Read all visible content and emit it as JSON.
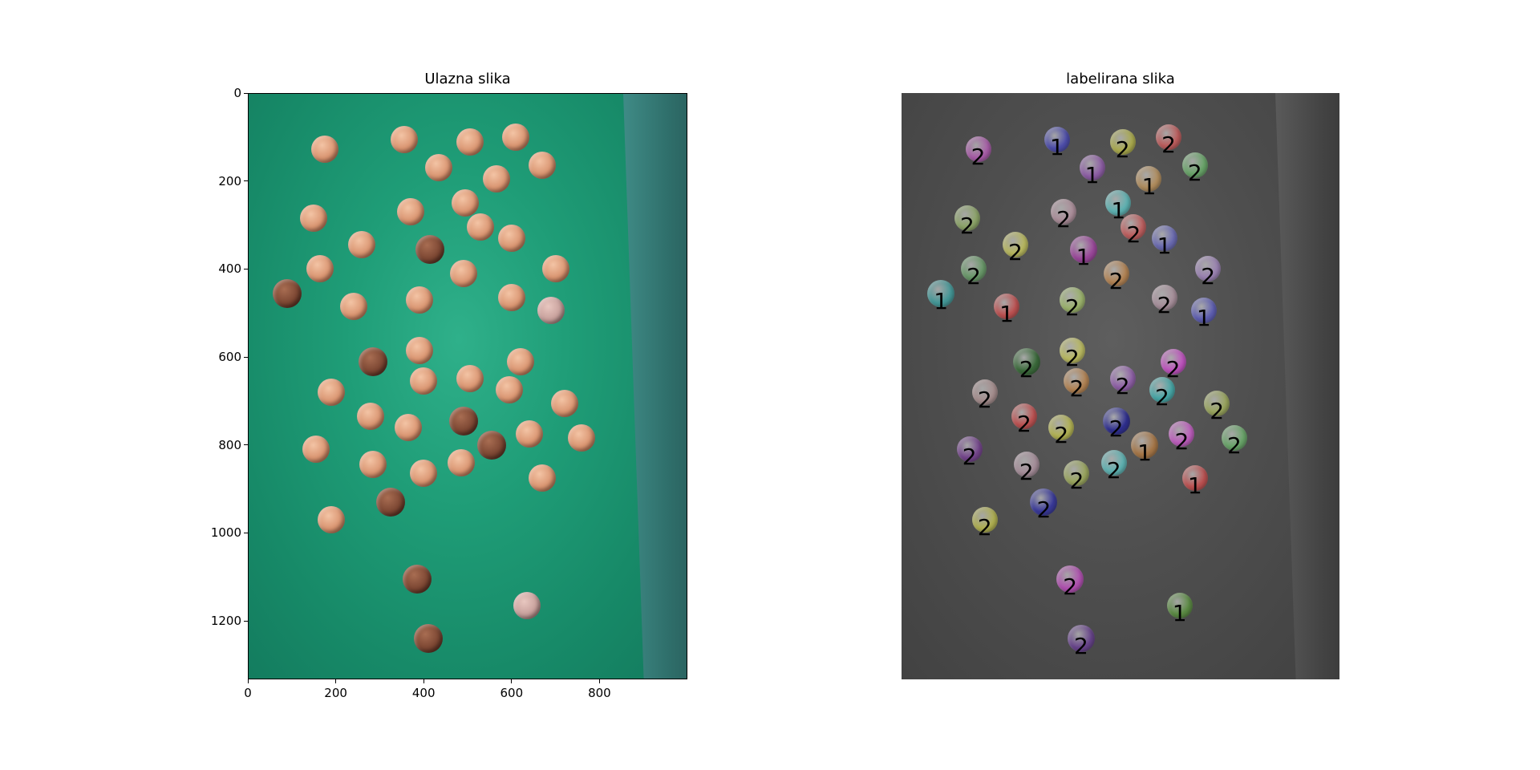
{
  "left": {
    "title": "Ulazna slika",
    "x_ticks": [
      "0",
      "200",
      "400",
      "600",
      "800"
    ],
    "y_ticks": [
      "0",
      "200",
      "400",
      "600",
      "800",
      "1000",
      "1200"
    ]
  },
  "right": {
    "title": "labelirana slika"
  },
  "image_extent": {
    "width": 1000,
    "height": 1333
  },
  "coins": [
    {
      "x": 175,
      "y": 127,
      "type": "c",
      "label": "2",
      "color": "#c45fc4"
    },
    {
      "x": 355,
      "y": 105,
      "type": "c",
      "label": "1",
      "color": "#4b4bc8"
    },
    {
      "x": 505,
      "y": 112,
      "type": "c",
      "label": "2",
      "color": "#c8c84b"
    },
    {
      "x": 610,
      "y": 100,
      "type": "c",
      "label": "2",
      "color": "#e06060"
    },
    {
      "x": 435,
      "y": 170,
      "type": "c",
      "label": "1",
      "color": "#a060c0"
    },
    {
      "x": 565,
      "y": 195,
      "type": "c",
      "label": "1",
      "color": "#d0a060"
    },
    {
      "x": 670,
      "y": 165,
      "type": "c",
      "label": "2",
      "color": "#70c070"
    },
    {
      "x": 150,
      "y": 285,
      "type": "c",
      "label": "2",
      "color": "#a0c070"
    },
    {
      "x": 370,
      "y": 270,
      "type": "c",
      "label": "2",
      "color": "#c8a0b0"
    },
    {
      "x": 495,
      "y": 250,
      "type": "c",
      "label": "1",
      "color": "#60d0d0"
    },
    {
      "x": 530,
      "y": 305,
      "type": "c",
      "label": "2",
      "color": "#e06060"
    },
    {
      "x": 600,
      "y": 330,
      "type": "c",
      "label": "1",
      "color": "#7070d0"
    },
    {
      "x": 260,
      "y": 345,
      "type": "c",
      "label": "2",
      "color": "#d8d860"
    },
    {
      "x": 415,
      "y": 355,
      "type": "dark",
      "label": "1",
      "color": "#b040b0"
    },
    {
      "x": 165,
      "y": 400,
      "type": "c",
      "label": "2",
      "color": "#70b070"
    },
    {
      "x": 490,
      "y": 410,
      "type": "c",
      "label": "2",
      "color": "#d09050"
    },
    {
      "x": 700,
      "y": 400,
      "type": "c",
      "label": "2",
      "color": "#b090d0"
    },
    {
      "x": 90,
      "y": 455,
      "type": "dark",
      "label": "1",
      "color": "#40b0b0"
    },
    {
      "x": 240,
      "y": 485,
      "type": "c",
      "label": "1",
      "color": "#e05050"
    },
    {
      "x": 390,
      "y": 470,
      "type": "c",
      "label": "2",
      "color": "#b0d070"
    },
    {
      "x": 600,
      "y": 465,
      "type": "c",
      "label": "2",
      "color": "#c0a0b0"
    },
    {
      "x": 690,
      "y": 495,
      "type": "pink",
      "label": "1",
      "color": "#6060d0"
    },
    {
      "x": 390,
      "y": 585,
      "type": "c",
      "label": "2",
      "color": "#d8d860"
    },
    {
      "x": 285,
      "y": 610,
      "type": "dark",
      "label": "2",
      "color": "#307030"
    },
    {
      "x": 620,
      "y": 610,
      "type": "c",
      "label": "2",
      "color": "#e050e0"
    },
    {
      "x": 400,
      "y": 655,
      "type": "c",
      "label": "2",
      "color": "#d09050"
    },
    {
      "x": 505,
      "y": 650,
      "type": "c",
      "label": "2",
      "color": "#a060c0"
    },
    {
      "x": 190,
      "y": 680,
      "type": "c",
      "label": "2",
      "color": "#c0a0a0"
    },
    {
      "x": 595,
      "y": 675,
      "type": "c",
      "label": "2",
      "color": "#40c0c0"
    },
    {
      "x": 720,
      "y": 705,
      "type": "c",
      "label": "2",
      "color": "#b0c060"
    },
    {
      "x": 280,
      "y": 735,
      "type": "c",
      "label": "2",
      "color": "#e05050"
    },
    {
      "x": 365,
      "y": 760,
      "type": "c",
      "label": "2",
      "color": "#d0d050"
    },
    {
      "x": 490,
      "y": 745,
      "type": "dark",
      "label": "2",
      "color": "#2020a0"
    },
    {
      "x": 640,
      "y": 775,
      "type": "c",
      "label": "2",
      "color": "#e060e0"
    },
    {
      "x": 760,
      "y": 785,
      "type": "c",
      "label": "2",
      "color": "#70c070"
    },
    {
      "x": 155,
      "y": 810,
      "type": "c",
      "label": "2",
      "color": "#8040a0"
    },
    {
      "x": 555,
      "y": 800,
      "type": "dark",
      "label": "1",
      "color": "#c08040"
    },
    {
      "x": 285,
      "y": 845,
      "type": "c",
      "label": "2",
      "color": "#c0a0b0"
    },
    {
      "x": 400,
      "y": 865,
      "type": "c",
      "label": "2",
      "color": "#b0c060"
    },
    {
      "x": 485,
      "y": 840,
      "type": "c",
      "label": "2",
      "color": "#60d0d0"
    },
    {
      "x": 670,
      "y": 875,
      "type": "c",
      "label": "1",
      "color": "#e05050"
    },
    {
      "x": 325,
      "y": 930,
      "type": "dark",
      "label": "2",
      "color": "#3030b0"
    },
    {
      "x": 190,
      "y": 970,
      "type": "c",
      "label": "2",
      "color": "#d0d050"
    },
    {
      "x": 385,
      "y": 1105,
      "type": "dark",
      "label": "2",
      "color": "#d050d0"
    },
    {
      "x": 635,
      "y": 1165,
      "type": "pink",
      "label": "1",
      "color": "#60a040"
    },
    {
      "x": 410,
      "y": 1240,
      "type": "dark",
      "label": "2",
      "color": "#7040a0"
    }
  ]
}
